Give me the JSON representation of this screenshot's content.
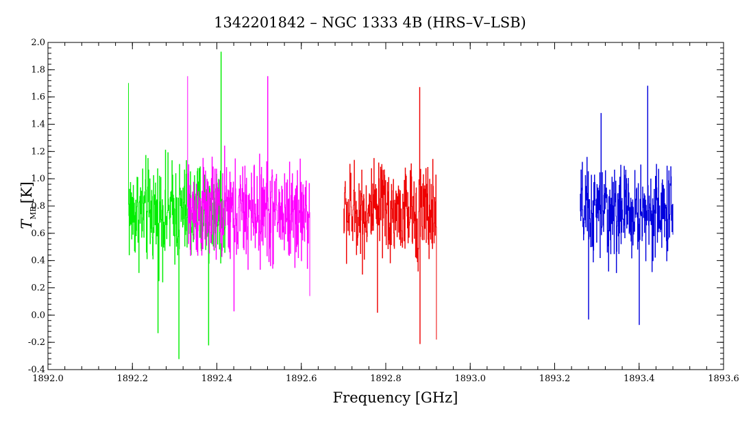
{
  "chart_data": {
    "type": "line",
    "title": "1342201842 – NGC 1333 4B (HRS–V–LSB)",
    "xlabel": "Frequency [GHz]",
    "ylabel": "T",
    "ylabel_sub": "MB",
    "ylabel_unit": "[K]",
    "xlim": [
      1892.0,
      1893.6
    ],
    "ylim": [
      -0.4,
      2.0
    ],
    "x_ticks": [
      "1892.0",
      "1892.2",
      "1892.4",
      "1892.6",
      "1892.8",
      "1893.0",
      "1893.2",
      "1893.4",
      "1893.6"
    ],
    "y_ticks": [
      "2.0",
      "1.8",
      "1.6",
      "1.4",
      "1.2",
      "1.0",
      "0.8",
      "0.6",
      "0.4",
      "0.2",
      "0.0",
      "-0.2",
      "-0.4"
    ],
    "grid": false,
    "series": [
      {
        "color": "#00ee00",
        "x_range": [
          1892.19,
          1892.42
        ],
        "baseline": 0.75,
        "amplitude": 0.45,
        "peaks": [
          [
            1892.19,
            1.7
          ],
          [
            1892.26,
            -0.13
          ],
          [
            1892.31,
            -0.32
          ],
          [
            1892.41,
            1.93
          ],
          [
            1892.38,
            -0.22
          ]
        ]
      },
      {
        "color": "#ff00ff",
        "x_range": [
          1892.33,
          1892.62
        ],
        "baseline": 0.75,
        "amplitude": 0.45,
        "peaks": [
          [
            1892.33,
            1.75
          ],
          [
            1892.52,
            1.75
          ],
          [
            1892.44,
            0.03
          ],
          [
            1892.62,
            0.14
          ]
        ]
      },
      {
        "color": "#ee0000",
        "x_range": [
          1892.7,
          1892.92
        ],
        "baseline": 0.75,
        "amplitude": 0.42,
        "peaks": [
          [
            1892.88,
            1.67
          ],
          [
            1892.88,
            -0.21
          ],
          [
            1892.92,
            -0.18
          ],
          [
            1892.78,
            0.02
          ]
        ]
      },
      {
        "color": "#0000dd",
        "x_range": [
          1893.26,
          1893.48
        ],
        "baseline": 0.75,
        "amplitude": 0.42,
        "peaks": [
          [
            1893.42,
            1.68
          ],
          [
            1893.4,
            -0.07
          ],
          [
            1893.28,
            -0.03
          ],
          [
            1893.31,
            1.48
          ]
        ]
      }
    ]
  }
}
